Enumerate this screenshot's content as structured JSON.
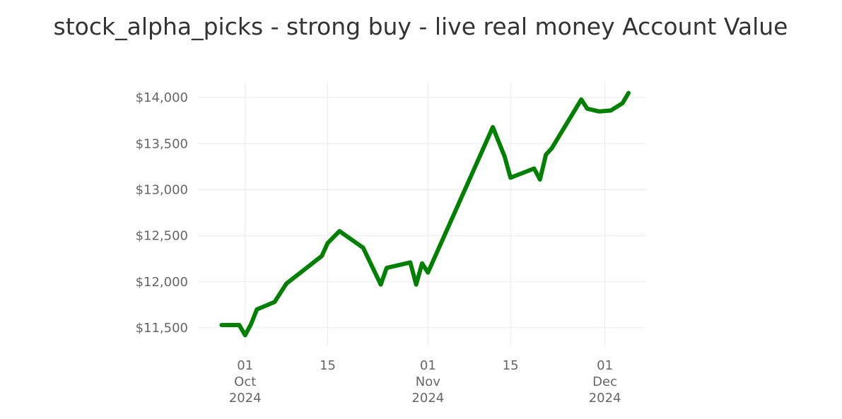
{
  "chart_data": {
    "type": "line",
    "title": "stock_alpha_picks - strong buy - live real money Account Value",
    "xlabel": "",
    "ylabel": "",
    "x_axis_type": "date",
    "xlim": [
      "2024-09-23",
      "2024-12-08"
    ],
    "ylim": [
      11300,
      14170
    ],
    "grid": true,
    "legend": "none",
    "line_color": "#008000",
    "y_ticks": [
      {
        "value": 11500,
        "label": "$11,500"
      },
      {
        "value": 12000,
        "label": "$12,000"
      },
      {
        "value": 12500,
        "label": "$12,500"
      },
      {
        "value": 13000,
        "label": "$13,000"
      },
      {
        "value": 13500,
        "label": "$13,500"
      },
      {
        "value": 14000,
        "label": "$14,000"
      }
    ],
    "x_ticks": [
      {
        "date": "2024-10-01",
        "lines": [
          "01",
          "Oct",
          "2024"
        ]
      },
      {
        "date": "2024-10-15",
        "lines": [
          "15"
        ]
      },
      {
        "date": "2024-11-01",
        "lines": [
          "01",
          "Nov",
          "2024"
        ]
      },
      {
        "date": "2024-11-15",
        "lines": [
          "15"
        ]
      },
      {
        "date": "2024-12-01",
        "lines": [
          "01",
          "Dec",
          "2024"
        ]
      }
    ],
    "series": [
      {
        "x": [
          "2024-09-27",
          "2024-09-30",
          "2024-10-01",
          "2024-10-02",
          "2024-10-03",
          "2024-10-06",
          "2024-10-08",
          "2024-10-10",
          "2024-10-14",
          "2024-10-15",
          "2024-10-17",
          "2024-10-21",
          "2024-10-24",
          "2024-10-25",
          "2024-10-29",
          "2024-10-30",
          "2024-10-31",
          "2024-11-01",
          "2024-11-12",
          "2024-11-14",
          "2024-11-15",
          "2024-11-19",
          "2024-11-20",
          "2024-11-21",
          "2024-11-22",
          "2024-11-27",
          "2024-11-28",
          "2024-11-30",
          "2024-12-02",
          "2024-12-04",
          "2024-12-05"
        ],
        "values": [
          11530,
          11530,
          11420,
          11540,
          11700,
          11780,
          11980,
          12080,
          12280,
          12420,
          12550,
          12370,
          11970,
          12150,
          12210,
          11970,
          12200,
          12100,
          13680,
          13360,
          13130,
          13230,
          13110,
          13380,
          13450,
          13980,
          13880,
          13850,
          13860,
          13940,
          14050
        ]
      }
    ]
  }
}
